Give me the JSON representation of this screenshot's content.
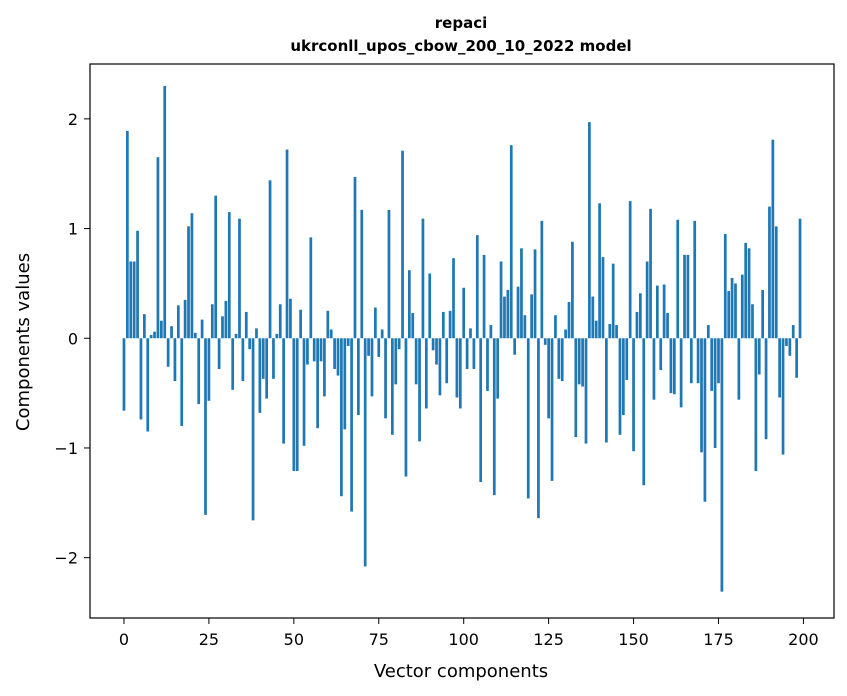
{
  "chart_data": {
    "type": "bar",
    "title_line1": "repaci",
    "title_line2": "ukrconll_upos_cbow_200_10_2022 model",
    "xlabel": "Vector components",
    "ylabel": "Components values",
    "xlim": [
      -10,
      209
    ],
    "ylim": [
      -2.55,
      2.5
    ],
    "xticks": [
      0,
      25,
      50,
      75,
      100,
      125,
      150,
      175,
      200
    ],
    "xtick_labels": [
      "0",
      "25",
      "50",
      "75",
      "100",
      "125",
      "150",
      "175",
      "200"
    ],
    "yticks": [
      -2,
      -1,
      0,
      1,
      2
    ],
    "ytick_labels": [
      "−2",
      "−1",
      "0",
      "1",
      "2"
    ],
    "bar_color": "#1f77b4",
    "grid": false,
    "values": [
      -0.66,
      1.89,
      0.7,
      0.7,
      0.98,
      -0.74,
      0.22,
      -0.85,
      0.03,
      0.06,
      1.65,
      0.16,
      2.3,
      -0.26,
      0.11,
      -0.39,
      0.3,
      -0.8,
      0.35,
      1.02,
      1.14,
      0.05,
      -0.6,
      0.17,
      -1.61,
      -0.57,
      0.31,
      1.3,
      -0.28,
      0.2,
      0.34,
      1.15,
      -0.47,
      0.04,
      1.09,
      -0.39,
      0.24,
      -0.1,
      -1.66,
      0.09,
      -0.68,
      -0.37,
      -0.55,
      1.44,
      -0.37,
      0.04,
      0.31,
      -0.96,
      1.72,
      0.36,
      -1.21,
      -1.21,
      0.26,
      -0.98,
      -0.24,
      0.92,
      -0.21,
      -0.82,
      -0.21,
      -0.53,
      0.25,
      0.08,
      -0.28,
      -0.34,
      -1.44,
      -0.83,
      -0.07,
      -1.58,
      1.47,
      -0.7,
      1.17,
      -2.08,
      -0.16,
      -0.53,
      0.28,
      -0.17,
      0.08,
      -0.73,
      1.17,
      -0.88,
      -0.42,
      -0.1,
      1.71,
      -1.26,
      0.62,
      0.23,
      -0.42,
      -0.94,
      1.09,
      -0.64,
      0.59,
      -0.11,
      -0.24,
      -0.52,
      0.24,
      -0.41,
      0.25,
      0.73,
      -0.54,
      -0.64,
      0.46,
      -0.28,
      0.09,
      -0.28,
      0.94,
      -1.31,
      0.76,
      -0.48,
      0.12,
      -1.43,
      -0.55,
      0.7,
      0.38,
      0.44,
      1.76,
      -0.15,
      0.47,
      0.82,
      0.21,
      -1.46,
      0.4,
      0.81,
      -1.64,
      1.07,
      -0.06,
      -0.73,
      -1.3,
      0.21,
      -0.37,
      -0.39,
      0.08,
      0.33,
      0.88,
      -0.9,
      -0.42,
      -0.44,
      -0.96,
      1.97,
      0.38,
      0.16,
      1.23,
      0.74,
      -0.95,
      0.13,
      0.68,
      0.12,
      -0.88,
      -0.7,
      -0.38,
      1.25,
      -1.03,
      0.24,
      0.41,
      -1.34,
      0.7,
      1.18,
      -0.56,
      0.48,
      -0.29,
      0.49,
      0.23,
      -0.5,
      -0.51,
      1.08,
      -0.63,
      0.76,
      0.76,
      -0.41,
      1.07,
      -0.41,
      -1.04,
      -1.49,
      0.12,
      -0.48,
      -1.0,
      -0.41,
      -2.31,
      0.95,
      0.43,
      0.55,
      0.5,
      -0.56,
      0.58,
      0.87,
      0.82,
      0.31,
      -1.21,
      -0.33,
      0.44,
      -0.92,
      1.2,
      1.81,
      1.02,
      -0.54,
      -1.06,
      -0.07,
      -0.16,
      0.12,
      -0.36,
      1.09
    ]
  }
}
